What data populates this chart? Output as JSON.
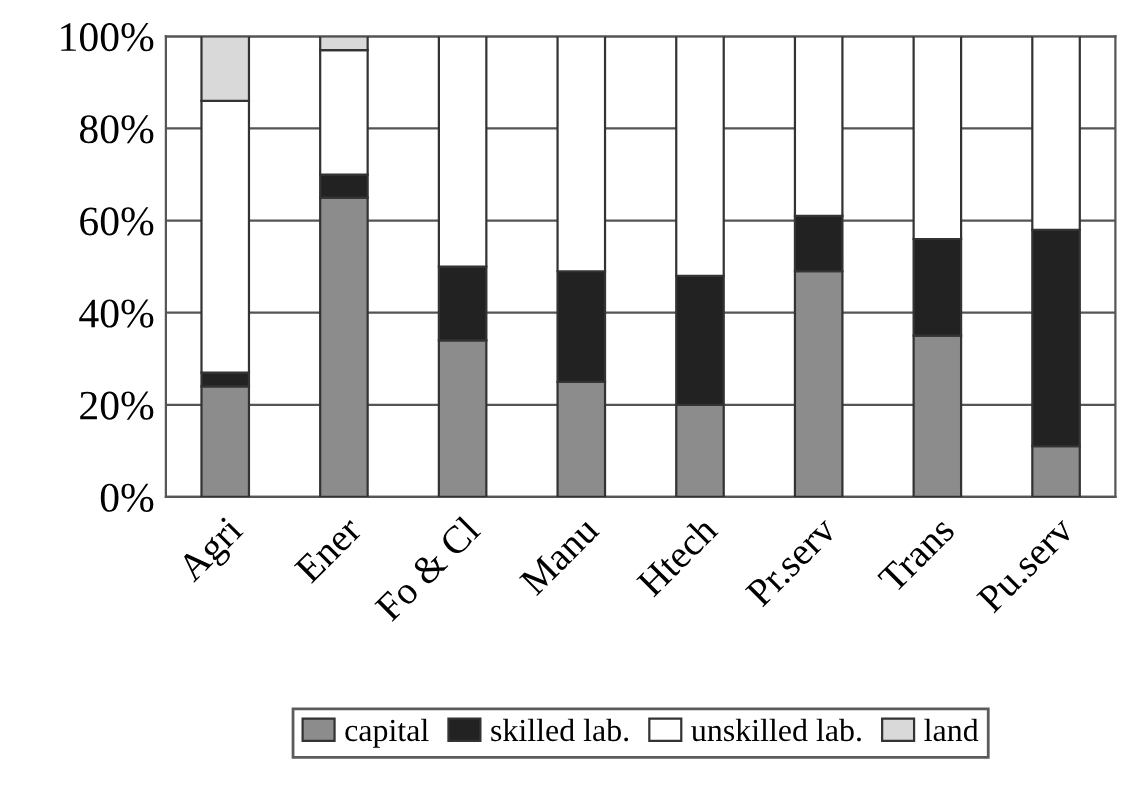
{
  "chart_data": {
    "type": "bar",
    "stacked": true,
    "categories": [
      "Agri",
      "Ener",
      "Fo & Cl",
      "Manu",
      "Htech",
      "Pr.serv",
      "Trans",
      "Pu.serv"
    ],
    "series": [
      {
        "name": "capital",
        "color": "#8c8c8c",
        "values": [
          24,
          65,
          34,
          25,
          20,
          49,
          35,
          11
        ]
      },
      {
        "name": "skilled lab.",
        "color": "#222222",
        "values": [
          3,
          5,
          16,
          24,
          28,
          12,
          21,
          47
        ]
      },
      {
        "name": "unskilled lab.",
        "color": "#ffffff",
        "values": [
          59,
          27,
          50,
          51,
          52,
          39,
          44,
          42
        ]
      },
      {
        "name": "land",
        "color": "#d9d9d9",
        "values": [
          14,
          3,
          null,
          null,
          null,
          null,
          null,
          null
        ]
      }
    ],
    "ylim": [
      0,
      100
    ],
    "yticks": [
      {
        "value": 0,
        "label": "0%"
      },
      {
        "value": 20,
        "label": "20%"
      },
      {
        "value": 40,
        "label": "40%"
      },
      {
        "value": 60,
        "label": "60%"
      },
      {
        "value": 80,
        "label": "80%"
      },
      {
        "value": 100,
        "label": "100%"
      }
    ],
    "grid": "y",
    "legend": "bottom"
  }
}
